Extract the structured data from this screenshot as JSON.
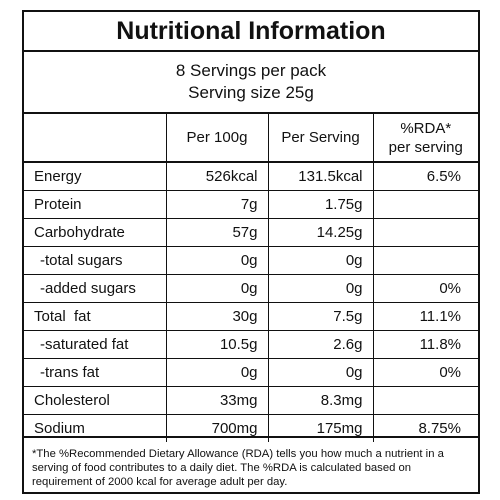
{
  "title": "Nutritional Information",
  "servings": {
    "line1": "8 Servings per pack",
    "line2": "Serving size 25g"
  },
  "headers": {
    "per100": "Per 100g",
    "perServing": "Per Serving",
    "rda_line1": "%RDA*",
    "rda_line2": "per serving"
  },
  "rows": [
    {
      "name": "Energy",
      "per100": "526kcal",
      "perServing": "131.5kcal",
      "rda": "6.5%"
    },
    {
      "name": "Protein",
      "per100": "7g",
      "perServing": "1.75g",
      "rda": ""
    },
    {
      "name": "Carbohydrate",
      "per100": "57g",
      "perServing": "14.25g",
      "rda": ""
    },
    {
      "name": "-total sugars",
      "per100": "0g",
      "perServing": "0g",
      "rda": ""
    },
    {
      "name": "-added sugars",
      "per100": "0g",
      "perServing": "0g",
      "rda": "0%"
    },
    {
      "name": "Total  fat",
      "per100": "30g",
      "perServing": "7.5g",
      "rda": "11.1%"
    },
    {
      "name": "-saturated fat",
      "per100": "10.5g",
      "perServing": "2.6g",
      "rda": "11.8%"
    },
    {
      "name": "-trans fat",
      "per100": "0g",
      "perServing": "0g",
      "rda": "0%"
    },
    {
      "name": "Cholesterol",
      "per100": "33mg",
      "perServing": "8.3mg",
      "rda": ""
    },
    {
      "name": "Sodium",
      "per100": "700mg",
      "perServing": "175mg",
      "rda": "8.75%"
    }
  ],
  "footnote": "*The %Recommended Dietary Allowance (RDA) tells you how much a nutrient in a serving of food contributes to a daily diet. The %RDA is calculated based on requirement of 2000 kcal for average adult per day."
}
